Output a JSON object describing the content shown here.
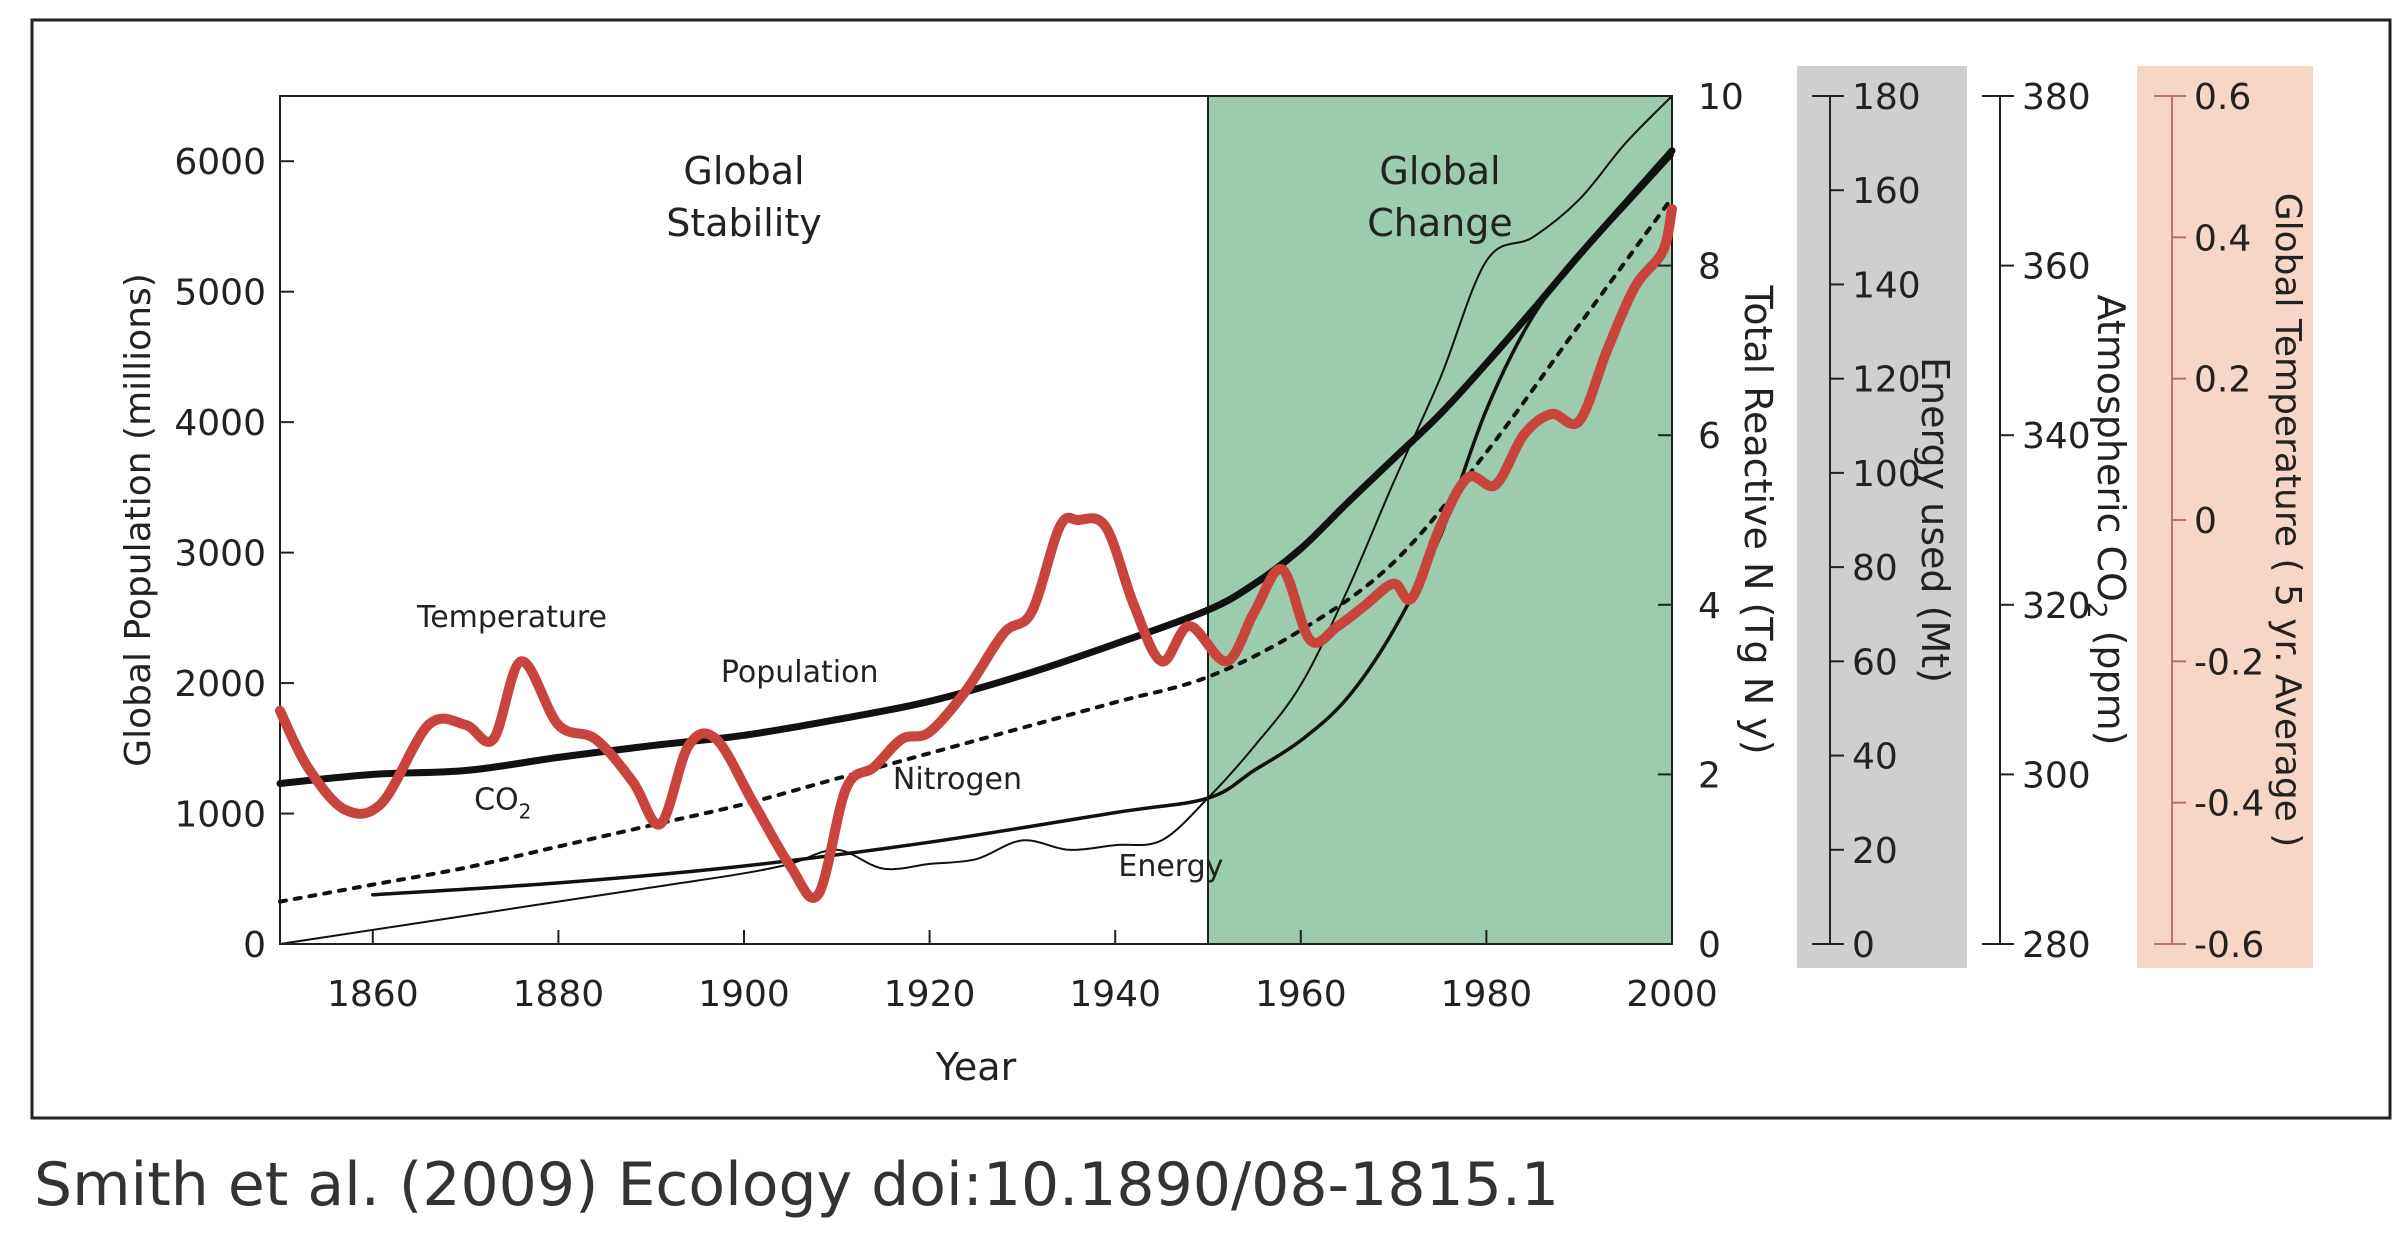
{
  "caption": "Smith et al. (2009) Ecology doi:10.1890/08-1815.1",
  "chart_data": {
    "type": "line",
    "xlabel": "Year",
    "xlim": [
      1850,
      2000
    ],
    "x_ticks": [
      "1860",
      "1880",
      "1900",
      "1920",
      "1940",
      "1960",
      "1980",
      "2000"
    ],
    "regions": [
      {
        "label_line1": "Global",
        "label_line2": "Stability",
        "from": 1850,
        "to": 1950,
        "color": "#ffffff"
      },
      {
        "label_line1": "Global",
        "label_line2": "Change",
        "from": 1950,
        "to": 2000,
        "color": "#9ccbad"
      }
    ],
    "axes": {
      "population": {
        "label": "Global Population (millions)",
        "ylim": [
          0,
          6500
        ],
        "ticks": [
          "0",
          "1000",
          "2000",
          "3000",
          "4000",
          "5000",
          "6000"
        ]
      },
      "nitrogen": {
        "label": "Total Reactive N (Tg N y)",
        "ylim": [
          0,
          10
        ],
        "ticks": [
          "0",
          "2",
          "4",
          "6",
          "8",
          "10"
        ]
      },
      "energy": {
        "label": "Energy used (Mt)",
        "ylim": [
          0,
          180
        ],
        "ticks": [
          "0",
          "20",
          "40",
          "60",
          "80",
          "100",
          "120",
          "140",
          "160",
          "180"
        ],
        "band_color": "#cfcfcf"
      },
      "co2": {
        "label": "Atmospheric CO",
        "label_sub": "2",
        "label_end": " (ppm)",
        "ylim": [
          280,
          380
        ],
        "ticks": [
          "280",
          "300",
          "320",
          "340",
          "360",
          "380"
        ]
      },
      "temperature": {
        "label": "Global Temperature ( 5 yr. Average )",
        "ylim": [
          -0.6,
          0.6
        ],
        "ticks": [
          "-0.6",
          "-0.4",
          "-0.2",
          "0",
          "0.2",
          "0.4",
          "0.6"
        ],
        "band_color": "#f6d6c6",
        "tick_color": "#c0706a"
      }
    },
    "series": [
      {
        "name": "Population",
        "axis": "population",
        "color": "#111111",
        "x": [
          1850,
          1860,
          1870,
          1880,
          1890,
          1900,
          1910,
          1920,
          1930,
          1940,
          1950,
          1955,
          1960,
          1965,
          1970,
          1975,
          1980,
          1985,
          1990,
          1995,
          2000
        ],
        "y": [
          1230,
          1300,
          1330,
          1430,
          1520,
          1600,
          1720,
          1860,
          2060,
          2300,
          2560,
          2760,
          3030,
          3380,
          3720,
          4060,
          4450,
          4860,
          5280,
          5680,
          6080
        ]
      },
      {
        "name": "CO",
        "name_sub": "2",
        "axis": "co2",
        "color": "#111111",
        "dashed": true,
        "x": [
          1850,
          1860,
          1870,
          1880,
          1890,
          1900,
          1910,
          1920,
          1930,
          1940,
          1950,
          1960,
          1970,
          1980,
          1990,
          2000
        ],
        "y": [
          285,
          287,
          289,
          291.5,
          294,
          296.5,
          299.5,
          302.5,
          305.5,
          308.5,
          311.5,
          317,
          325,
          338,
          353,
          368
        ]
      },
      {
        "name": "Nitrogen",
        "axis": "nitrogen",
        "color": "#111111",
        "x": [
          1860,
          1880,
          1900,
          1920,
          1940,
          1950,
          1955,
          1960,
          1965,
          1970,
          1975,
          1980,
          1985,
          1990,
          1995,
          2000
        ],
        "y": [
          0.58,
          0.72,
          0.92,
          1.2,
          1.55,
          1.72,
          2.05,
          2.4,
          2.9,
          3.7,
          4.8,
          6.3,
          7.4,
          8.1,
          8.7,
          9.3
        ]
      },
      {
        "name": "Energy",
        "axis": "energy",
        "color": "#111111",
        "x": [
          1850,
          1870,
          1890,
          1900,
          1905,
          1910,
          1915,
          1920,
          1925,
          1930,
          1935,
          1940,
          1945,
          1950,
          1955,
          1960,
          1965,
          1970,
          1975,
          1980,
          1985,
          1990,
          1995,
          2000
        ],
        "y": [
          0,
          6,
          12,
          15,
          17,
          20,
          16,
          17,
          18,
          22,
          20,
          21,
          22,
          31,
          42,
          55,
          75,
          98,
          120,
          145,
          150,
          158,
          170,
          180
        ]
      },
      {
        "name": "Temperature",
        "axis": "temperature",
        "color": "#c9443c",
        "x": [
          1850,
          1853,
          1857,
          1861,
          1866,
          1870,
          1873,
          1876,
          1880,
          1884,
          1888,
          1891,
          1894,
          1897,
          1901,
          1905,
          1908,
          1911,
          1914,
          1917,
          1920,
          1924,
          1928,
          1931,
          1934,
          1936,
          1939,
          1942,
          1945,
          1948,
          1952,
          1955,
          1958,
          1961,
          1964,
          1967,
          1970,
          1972,
          1975,
          1978,
          1981,
          1984,
          1987,
          1990,
          1993,
          1996,
          1999,
          2000
        ],
        "y": [
          -0.27,
          -0.35,
          -0.41,
          -0.4,
          -0.29,
          -0.29,
          -0.31,
          -0.2,
          -0.29,
          -0.31,
          -0.37,
          -0.43,
          -0.32,
          -0.31,
          -0.4,
          -0.49,
          -0.53,
          -0.38,
          -0.35,
          -0.31,
          -0.3,
          -0.24,
          -0.16,
          -0.13,
          -0.01,
          0.0,
          -0.01,
          -0.12,
          -0.2,
          -0.15,
          -0.2,
          -0.13,
          -0.07,
          -0.17,
          -0.15,
          -0.12,
          -0.09,
          -0.11,
          -0.01,
          0.06,
          0.05,
          0.12,
          0.15,
          0.14,
          0.24,
          0.33,
          0.38,
          0.44
        ]
      }
    ],
    "series_labels": [
      {
        "name": "Temperature",
        "x": 1875,
        "y_pop": 2430
      },
      {
        "name": "Population",
        "x": 1906,
        "y_pop": 2010
      },
      {
        "name": "CO",
        "sub": "2",
        "x": 1874,
        "y_pop": 1030
      },
      {
        "name": "Nitrogen",
        "x": 1923,
        "y_pop": 1190
      },
      {
        "name": "Energy",
        "x": 1946,
        "y_pop": 520
      }
    ]
  }
}
